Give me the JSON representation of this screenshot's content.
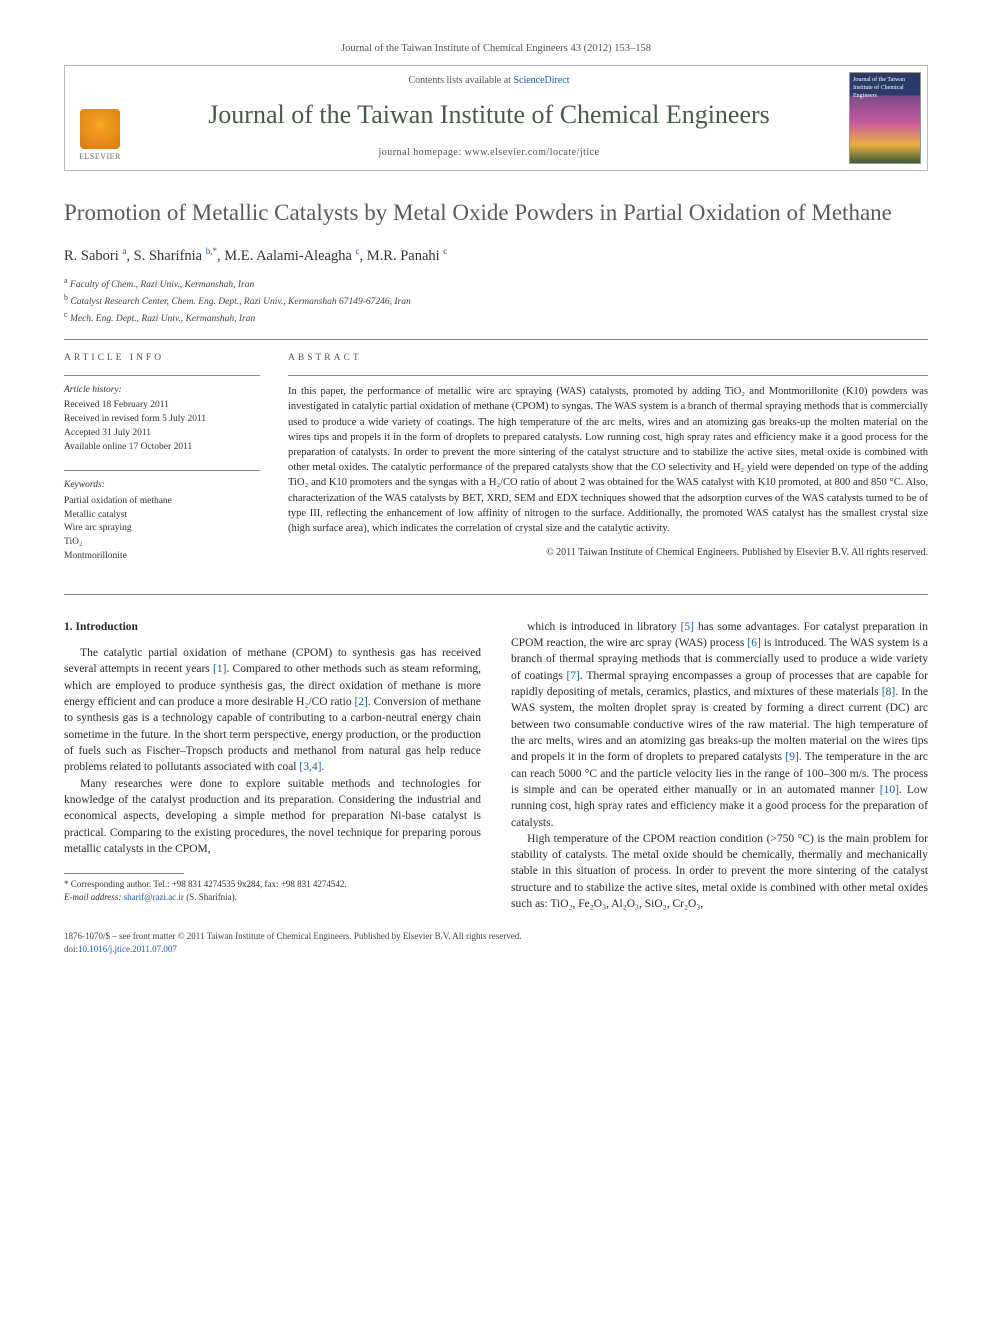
{
  "citation": "Journal of the Taiwan Institute of Chemical Engineers 43 (2012) 153–158",
  "masthead": {
    "contents_prefix": "Contents lists available at ",
    "contents_link": "ScienceDirect",
    "journal_name": "Journal of the Taiwan Institute of Chemical Engineers",
    "homepage_prefix": "journal homepage: ",
    "homepage_url": "www.elsevier.com/locate/jtice",
    "publisher": "ELSEVIER",
    "cover_label": "Journal of the Taiwan Institute of Chemical Engineers"
  },
  "title": "Promotion of Metallic Catalysts by Metal Oxide Powders in Partial Oxidation of Methane",
  "authors_html": "R. Sabori <sup class=\"author-link\">a</sup>, S. Sharifnia <sup class=\"author-link\">b,*</sup>, M.E. Aalami-Aleagha <sup class=\"author-link\">c</sup>, M.R. Panahi <sup class=\"author-link\">c</sup>",
  "affiliations": {
    "a": "Faculty of Chem., Razi Univ., Kermanshah, Iran",
    "b": "Catalyst Research Center, Chem. Eng. Dept., Razi Univ., Kermanshah 67149-67246, Iran",
    "c": "Mech. Eng. Dept., Razi Univ., Kermanshah, Iran"
  },
  "article_info": {
    "heading": "ARTICLE INFO",
    "history_label": "Article history:",
    "history": [
      "Received 18 February 2011",
      "Received in revised form 5 July 2011",
      "Accepted 31 July 2011",
      "Available online 17 October 2011"
    ],
    "keywords_label": "Keywords:",
    "keywords": [
      "Partial oxidation of methane",
      "Metallic catalyst",
      "Wire arc spraying",
      "TiO₂",
      "Montmorillonite"
    ]
  },
  "abstract": {
    "heading": "ABSTRACT",
    "text": "In this paper, the performance of metallic wire arc spraying (WAS) catalysts, promoted by adding TiO₂ and Montmorillonite (K10) powders was investigated in catalytic partial oxidation of methane (CPOM) to syngas. The WAS system is a branch of thermal spraying methods that is commercially used to produce a wide variety of coatings. The high temperature of the arc melts, wires and an atomizing gas breaks-up the molten material on the wires tips and propels it in the form of droplets to prepared catalysts. Low running cost, high spray rates and efficiency make it a good process for the preparation of catalysts. In order to prevent the more sintering of the catalyst structure and to stabilize the active sites, metal oxide is combined with other metal oxides. The catalytic performance of the prepared catalysts show that the CO selectivity and H₂ yield were depended on type of the adding TiO₂ and K10 promoters and the syngas with a H₂/CO ratio of about 2 was obtained for the WAS catalyst with K10 promoted, at 800 and 850 °C. Also, characterization of the WAS catalysts by BET, XRD, SEM and EDX techniques showed that the adsorption curves of the WAS catalysts turned to be of type III, reflecting the enhancement of low affinity of nitrogen to the surface. Additionally, the promoted WAS catalyst has the smallest crystal size (high surface area), which indicates the correlation of crystal size and the catalytic activity.",
    "copyright": "© 2011 Taiwan Institute of Chemical Engineers. Published by Elsevier B.V. All rights reserved."
  },
  "body": {
    "section_heading": "1. Introduction",
    "p1": "The catalytic partial oxidation of methane (CPOM) to synthesis gas has received several attempts in recent years [1]. Compared to other methods such as steam reforming, which are employed to produce synthesis gas, the direct oxidation of methane is more energy efficient and can produce a more desirable H₂/CO ratio [2]. Conversion of methane to synthesis gas is a technology capable of contributing to a carbon-neutral energy chain sometime in the future. In the short term perspective, energy production, or the production of fuels such as Fischer–Tropsch products and methanol from natural gas help reduce problems related to pollutants associated with coal [3,4].",
    "p2": "Many researches were done to explore suitable methods and technologies for knowledge of the catalyst production and its preparation. Considering the industrial and economical aspects, developing a simple method for preparation Ni-base catalyst is practical. Comparing to the existing procedures, the novel technique for preparing porous metallic catalysts in the CPOM,",
    "p3": "which is introduced in libratory [5] has some advantages. For catalyst preparation in CPOM reaction, the wire arc spray (WAS) process [6] is introduced. The WAS system is a branch of thermal spraying methods that is commercially used to produce a wide variety of coatings [7]. Thermal spraying encompasses a group of processes that are capable for rapidly depositing of metals, ceramics, plastics, and mixtures of these materials [8]. In the WAS system, the molten droplet spray is created by forming a direct current (DC) arc between two consumable conductive wires of the raw material. The high temperature of the arc melts, wires and an atomizing gas breaks-up the molten material on the wires tips and propels it in the form of droplets to prepared catalysts [9]. The temperature in the arc can reach 5000 °C and the particle velocity lies in the range of 100–300 m/s. The process is simple and can be operated either manually or in an automated manner [10]. Low running cost, high spray rates and efficiency make it a good process for the preparation of catalysts.",
    "p4": "High temperature of the CPOM reaction condition (>750 °C) is the main problem for stability of catalysts. The metal oxide should be chemically, thermally and mechanically stable in this situation of process. In order to prevent the more sintering of the catalyst structure and to stabilize the active sites, metal oxide is combined with other metal oxides such as: TiO₂, Fe₂O₃, Al₂O₃, SiO₂, Cr₂O₃,"
  },
  "footnotes": {
    "corr": "* Corresponding author. Tel.: +98 831 4274535 9x284, fax: +98 831 4274542.",
    "email_label": "E-mail address: ",
    "email": "sharif@razi.ac.ir",
    "email_who": " (S. Sharifnia)."
  },
  "footer": {
    "line1": "1876-1070/$ – see front matter © 2011 Taiwan Institute of Chemical Engineers. Published by Elsevier B.V. All rights reserved.",
    "doi_label": "doi:",
    "doi": "10.1016/j.jtice.2011.07.007"
  }
}
